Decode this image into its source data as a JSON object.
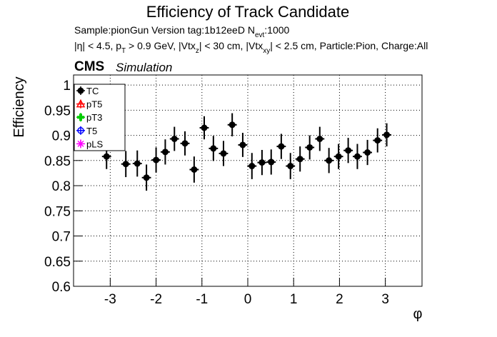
{
  "chart_data": {
    "type": "errorbar",
    "title": "Efficiency of Track Candidate",
    "subtitle_lines": [
      [
        "Sample:pionGun   Version tag:1b12eeD  N",
        "evt",
        ":1000"
      ],
      [
        "|η| < 4.5, p",
        "T",
        " > 0.9 GeV, |Vtx",
        "z",
        "| < 30 cm, |Vtx",
        "xy",
        "| < 2.5 cm, Particle:Pion, Charge:All"
      ]
    ],
    "experiment": "CMS",
    "experiment_note": "Simulation",
    "x_label": "φ",
    "y_label": "Efficiency",
    "xlim": [
      -3.8,
      3.8
    ],
    "xticks": [
      -3,
      -2,
      -1,
      0,
      1,
      2,
      3
    ],
    "ylim": [
      0.6,
      1.02
    ],
    "yticks": [
      0.6,
      0.65,
      0.7,
      0.75,
      0.8,
      0.85,
      0.9,
      0.95,
      1
    ],
    "grid": true,
    "legend": "top-left",
    "series": [
      {
        "name": "TC",
        "color": "#000000",
        "marker": "circle-filled",
        "x": [
          -3.08,
          -2.66,
          -2.41,
          -2.21,
          -2.0,
          -1.8,
          -1.6,
          -1.37,
          -1.17,
          -0.95,
          -0.75,
          -0.53,
          -0.34,
          -0.11,
          0.09,
          0.31,
          0.51,
          0.73,
          0.93,
          1.14,
          1.35,
          1.57,
          1.77,
          1.98,
          2.19,
          2.39,
          2.61,
          2.83,
          3.03
        ],
        "values": [
          0.858,
          0.843,
          0.844,
          0.816,
          0.851,
          0.867,
          0.893,
          0.884,
          0.832,
          0.915,
          0.874,
          0.864,
          0.921,
          0.881,
          0.839,
          0.846,
          0.847,
          0.878,
          0.839,
          0.853,
          0.876,
          0.893,
          0.85,
          0.858,
          0.87,
          0.858,
          0.866,
          0.89,
          0.901
        ],
        "yerr": [
          0.025,
          0.026,
          0.026,
          0.026,
          0.025,
          0.025,
          0.024,
          0.024,
          0.026,
          0.023,
          0.025,
          0.025,
          0.023,
          0.024,
          0.026,
          0.025,
          0.025,
          0.025,
          0.026,
          0.025,
          0.024,
          0.024,
          0.025,
          0.025,
          0.025,
          0.025,
          0.025,
          0.024,
          0.023
        ],
        "xerr": 0.1
      },
      {
        "name": "pT5",
        "color": "#ff0000",
        "marker": "triangle-open"
      },
      {
        "name": "pT3",
        "color": "#00cc00",
        "marker": "cross"
      },
      {
        "name": "T5",
        "color": "#0000ff",
        "marker": "circle-open"
      },
      {
        "name": "pLS",
        "color": "#ff00ff",
        "marker": "star"
      }
    ]
  }
}
